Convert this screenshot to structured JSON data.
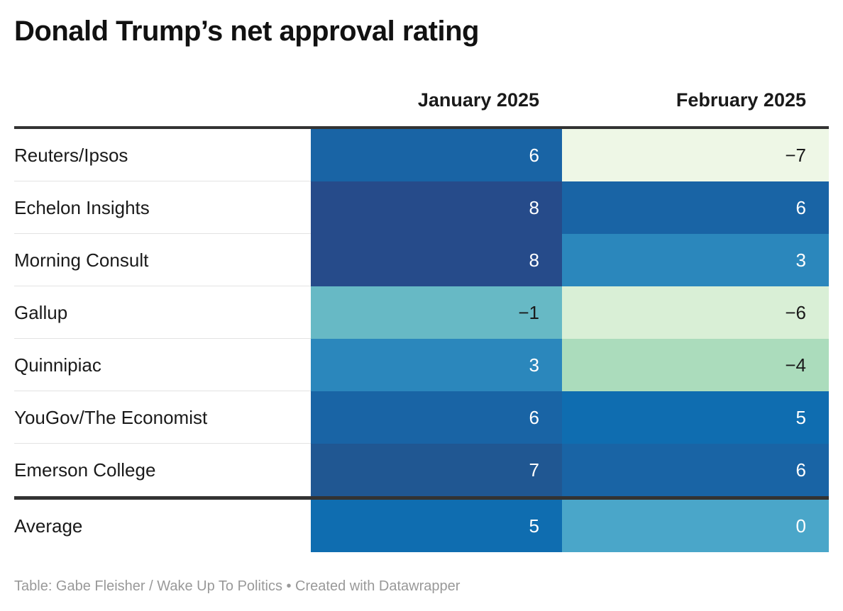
{
  "chart_data": {
    "type": "table",
    "title": "Donald Trump’s net approval rating",
    "columns": [
      "January 2025",
      "February 2025"
    ],
    "rows": [
      {
        "label": "Reuters/Ipsos",
        "values": [
          "6",
          "−7"
        ],
        "nums": [
          6,
          -7
        ]
      },
      {
        "label": "Echelon Insights",
        "values": [
          "8",
          "6"
        ],
        "nums": [
          8,
          6
        ]
      },
      {
        "label": "Morning Consult",
        "values": [
          "8",
          "3"
        ],
        "nums": [
          8,
          3
        ]
      },
      {
        "label": "Gallup",
        "values": [
          "−1",
          "−6"
        ],
        "nums": [
          -1,
          -6
        ]
      },
      {
        "label": "Quinnipiac",
        "values": [
          "3",
          "−4"
        ],
        "nums": [
          3,
          -4
        ]
      },
      {
        "label": "YouGov/The Economist",
        "values": [
          "6",
          "5"
        ],
        "nums": [
          6,
          5
        ]
      },
      {
        "label": "Emerson College",
        "values": [
          "7",
          "6"
        ],
        "nums": [
          7,
          6
        ]
      }
    ],
    "average": {
      "label": "Average",
      "values": [
        "5",
        "0"
      ],
      "nums": [
        5,
        0
      ]
    },
    "color_scale": {
      "-7": "#eef7e6",
      "-6": "#d9efd6",
      "-4": "#abdcbc",
      "-1": "#67b9c5",
      "0": "#4aa6c9",
      "3": "#2b87bc",
      "5": "#0f6db0",
      "6": "#1964a5",
      "7": "#205792",
      "8": "#264b8a"
    },
    "text_colors": {
      "light": "#ffffff",
      "dark": "#1a1a1a"
    }
  },
  "footer": "Table: Gabe Fleisher / Wake Up To Politics • Created with Datawrapper"
}
